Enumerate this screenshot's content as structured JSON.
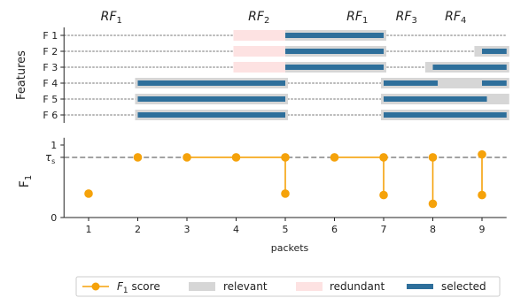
{
  "chart_data": {
    "type": "line",
    "x": [
      1,
      2,
      3,
      4,
      5,
      6,
      7,
      8,
      9
    ],
    "xlabel": "packets",
    "xlim": [
      0.5,
      9.5
    ],
    "features": [
      "F 1",
      "F 2",
      "F 3",
      "F 4",
      "F 5",
      "F 6"
    ],
    "features_label": "Features",
    "f1_label_base": "F",
    "f1_label_sub": "1",
    "f1_ticks": [
      "1",
      "0"
    ],
    "tau_base": "τ",
    "tau_sub": "s",
    "tau_value": 0.83,
    "ylim": [
      0,
      1.1
    ],
    "rf_labels": [
      {
        "base": "RF",
        "sub": "1",
        "x": 1.5
      },
      {
        "base": "RF",
        "sub": "2",
        "x": 4.5
      },
      {
        "base": "RF",
        "sub": "1",
        "x": 6.5
      },
      {
        "base": "RF",
        "sub": "3",
        "x": 7.5
      },
      {
        "base": "RF",
        "sub": "4",
        "x": 8.5
      }
    ],
    "bars": {
      "relevant": [
        {
          "feature": 1,
          "from": 5,
          "to": 7
        },
        {
          "feature": 2,
          "from": 5,
          "to": 7
        },
        {
          "feature": 2,
          "from": 8.9,
          "to": 9.5
        },
        {
          "feature": 3,
          "from": 5,
          "to": 7
        },
        {
          "feature": 3,
          "from": 7.9,
          "to": 9.5
        },
        {
          "feature": 4,
          "from": 2,
          "to": 5
        },
        {
          "feature": 4,
          "from": 7,
          "to": 9.5
        },
        {
          "feature": 5,
          "from": 2,
          "to": 5
        },
        {
          "feature": 5,
          "from": 7,
          "to": 9.5
        },
        {
          "feature": 6,
          "from": 2,
          "to": 5
        },
        {
          "feature": 6,
          "from": 7,
          "to": 9.5
        }
      ],
      "redundant": [
        {
          "feature": 1,
          "from": 4,
          "to": 5
        },
        {
          "feature": 2,
          "from": 4,
          "to": 5
        },
        {
          "feature": 3,
          "from": 4,
          "to": 5
        }
      ],
      "selected": [
        {
          "feature": 1,
          "from": 5,
          "to": 7
        },
        {
          "feature": 2,
          "from": 5,
          "to": 7
        },
        {
          "feature": 2,
          "from": 9,
          "to": 9.5
        },
        {
          "feature": 3,
          "from": 5,
          "to": 7
        },
        {
          "feature": 3,
          "from": 8,
          "to": 9.5
        },
        {
          "feature": 4,
          "from": 2,
          "to": 5
        },
        {
          "feature": 4,
          "from": 7,
          "to": 8.1
        },
        {
          "feature": 4,
          "from": 9,
          "to": 9.5
        },
        {
          "feature": 5,
          "from": 2,
          "to": 5
        },
        {
          "feature": 5,
          "from": 7,
          "to": 9.1
        },
        {
          "feature": 6,
          "from": 2,
          "to": 5
        },
        {
          "feature": 6,
          "from": 7,
          "to": 9.5
        }
      ]
    },
    "f1_points": [
      {
        "x": 1,
        "y": 0.33
      },
      {
        "x": 2,
        "y": 0.83
      },
      {
        "x": 3,
        "y": 0.83
      },
      {
        "x": 4,
        "y": 0.83
      },
      {
        "x": 5,
        "y": 0.83
      },
      {
        "x": 5,
        "y": 0.33
      },
      {
        "x": 6,
        "y": 0.83
      },
      {
        "x": 7,
        "y": 0.83
      },
      {
        "x": 7,
        "y": 0.31
      },
      {
        "x": 8,
        "y": 0.83
      },
      {
        "x": 8,
        "y": 0.19
      },
      {
        "x": 9,
        "y": 0.87
      },
      {
        "x": 9,
        "y": 0.31
      }
    ],
    "f1_segments": [
      [
        2,
        4
      ],
      [
        4,
        5
      ],
      [
        6,
        7
      ],
      [
        7,
        8
      ],
      [
        9,
        10
      ],
      [
        11,
        12
      ]
    ],
    "legend": {
      "placement": "bottom",
      "items": [
        {
          "key": "f1",
          "label_base": "F",
          "label_sub": "1",
          "label_rest": " score"
        },
        {
          "key": "relevant",
          "label": "relevant"
        },
        {
          "key": "redundant",
          "label": "redundant"
        },
        {
          "key": "selected",
          "label": "selected"
        }
      ]
    },
    "colors": {
      "orange": "#f5a20a",
      "relevant": "#d6d6d6",
      "redundant": "#fde2e2",
      "selected": "#2e6f9b",
      "grid": "#444444"
    }
  }
}
